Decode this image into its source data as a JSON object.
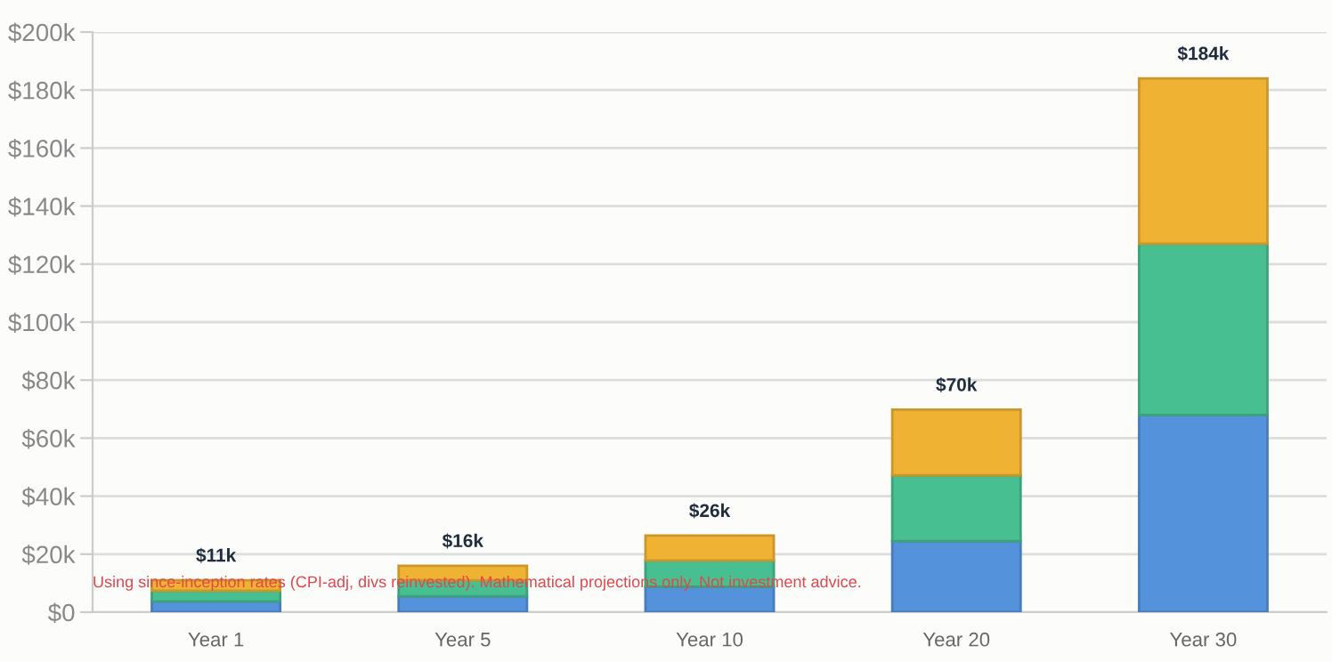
{
  "chart_data": {
    "type": "bar",
    "stacked": true,
    "categories": [
      "Year 1",
      "Year 5",
      "Year 10",
      "Year 20",
      "Year 30"
    ],
    "series": [
      {
        "color": "#5592dc",
        "values": [
          3.7,
          5.5,
          8.8,
          24.5,
          68
        ]
      },
      {
        "color": "#48bf91",
        "values": [
          3.7,
          5.5,
          9,
          22.7,
          59
        ]
      },
      {
        "color": "#f0b232",
        "values": [
          3.6,
          5,
          8.6,
          22.6,
          57
        ]
      }
    ],
    "totals": [
      "$11k",
      "$16k",
      "$26k",
      "$70k",
      "$184k"
    ],
    "ylim": [
      0,
      200
    ],
    "yticks": [
      {
        "value": 0,
        "label": "$0"
      },
      {
        "value": 20,
        "label": "$20k"
      },
      {
        "value": 40,
        "label": "$40k"
      },
      {
        "value": 60,
        "label": "$60k"
      },
      {
        "value": 80,
        "label": "$80k"
      },
      {
        "value": 100,
        "label": "$100k"
      },
      {
        "value": 120,
        "label": "$120k"
      },
      {
        "value": 140,
        "label": "$140k"
      },
      {
        "value": 160,
        "label": "$160k"
      },
      {
        "value": 180,
        "label": "$180k"
      },
      {
        "value": 200,
        "label": "$200k"
      }
    ],
    "grid": "y",
    "annotations": [
      "Using since-inception rates (CPI-adj, divs reinvested). Mathematical projections only. Not investment advice."
    ]
  }
}
